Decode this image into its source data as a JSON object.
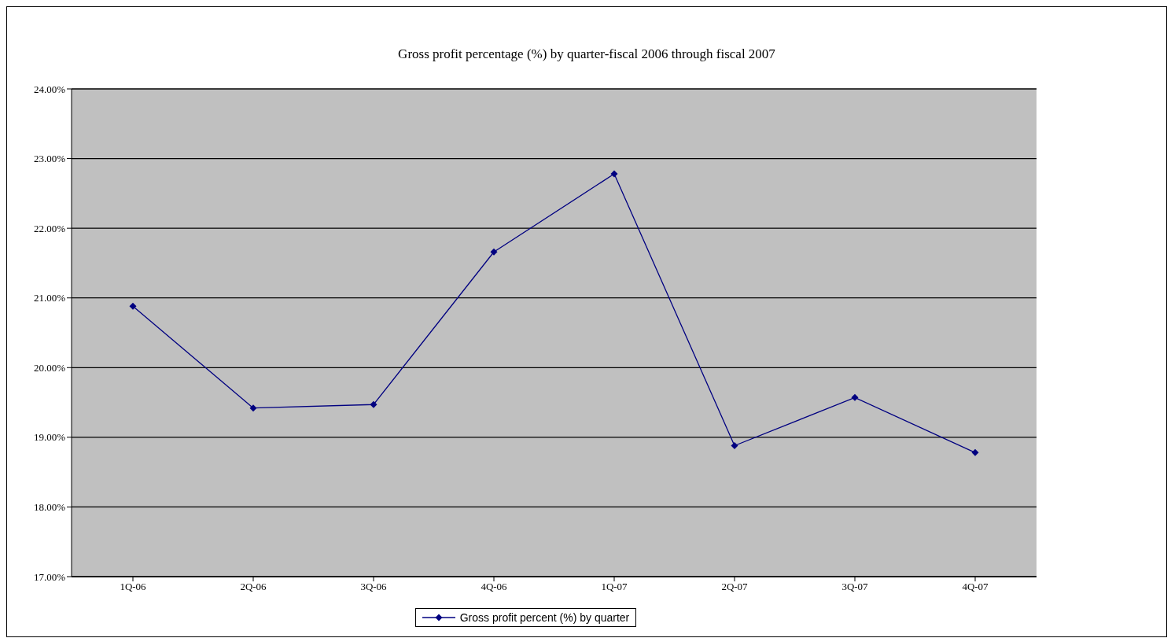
{
  "chart_data": {
    "type": "line",
    "title": "Gross profit percentage (%) by quarter-fiscal 2006 through fiscal 2007",
    "categories": [
      "1Q-06",
      "2Q-06",
      "3Q-06",
      "4Q-06",
      "1Q-07",
      "2Q-07",
      "3Q-07",
      "4Q-07"
    ],
    "series": [
      {
        "name": "Gross profit percent (%) by quarter",
        "color": "#000080",
        "values": [
          20.88,
          19.42,
          19.47,
          21.66,
          22.78,
          18.88,
          19.57,
          18.78
        ]
      }
    ],
    "ylim": [
      17,
      24
    ],
    "yticks": [
      {
        "value": 17,
        "label": "17.00%"
      },
      {
        "value": 18,
        "label": "18.00%"
      },
      {
        "value": 19,
        "label": "19.00%"
      },
      {
        "value": 20,
        "label": "20.00%"
      },
      {
        "value": 21,
        "label": "21.00%"
      },
      {
        "value": 22,
        "label": "22.00%"
      },
      {
        "value": 23,
        "label": "23.00%"
      },
      {
        "value": 24,
        "label": "24.00%"
      }
    ],
    "grid": "y",
    "legend": "bottom",
    "marker": "diamond",
    "line_style": "solid"
  }
}
